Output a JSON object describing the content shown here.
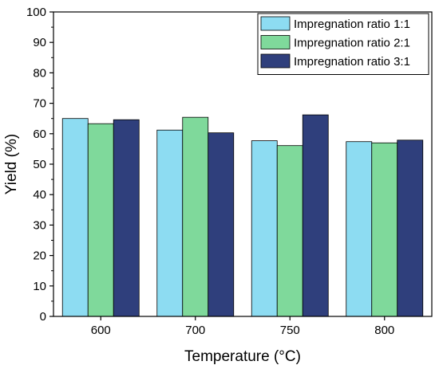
{
  "chart_data": {
    "type": "bar",
    "xlabel": "Temperature (°C)",
    "ylabel": "Yield (%)",
    "ylim": [
      0,
      100
    ],
    "yticks": [
      0,
      10,
      20,
      30,
      40,
      50,
      60,
      70,
      80,
      90,
      100
    ],
    "categories": [
      "600",
      "700",
      "750",
      "800"
    ],
    "legend_position": "top-right",
    "grid": false,
    "series": [
      {
        "name": "Impregnation ratio 1:1",
        "color": "#8ddcf2",
        "values": [
          65.0,
          61.2,
          57.7,
          57.4
        ]
      },
      {
        "name": "Impregnation ratio 2:1",
        "color": "#7fd99b",
        "values": [
          63.3,
          65.4,
          56.1,
          57.0
        ]
      },
      {
        "name": "Impregnation ratio 3:1",
        "color": "#2f3f7c",
        "values": [
          64.6,
          60.3,
          66.2,
          57.9
        ]
      }
    ]
  }
}
